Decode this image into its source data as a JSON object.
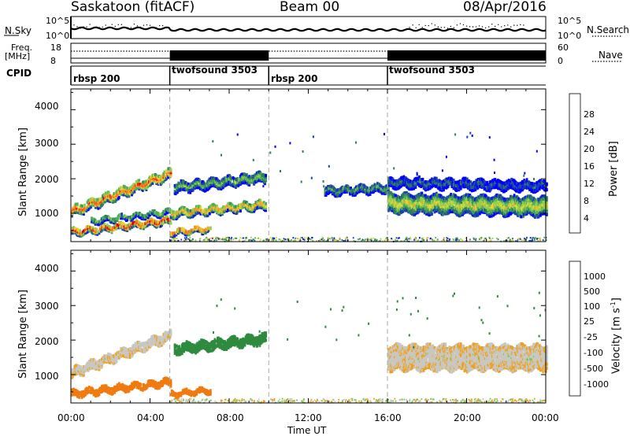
{
  "header": {
    "station": "Saskatoon (fitACF)",
    "beam": "Beam 00",
    "date": "08/Apr/2016"
  },
  "summary": {
    "nsky_label": "N.Sky",
    "nsky_ticks": [
      "10^5",
      "10^0"
    ],
    "nsearch_label": "N.Search",
    "freq_label_1": "Freq.",
    "freq_label_2": "[MHz]",
    "freq_ticks": [
      "18",
      "8"
    ],
    "nave_ticks": [
      "60",
      "0"
    ],
    "nave_label": "Nave",
    "cpid_label": "CPID",
    "cpid_segments": [
      {
        "name": "rbsp 200",
        "start_h": 0,
        "end_h": 5
      },
      {
        "name": "twofsound 3503",
        "start_h": 5,
        "end_h": 10
      },
      {
        "name": "rbsp 200",
        "start_h": 10,
        "end_h": 16
      },
      {
        "name": "twofsound 3503",
        "start_h": 16,
        "end_h": 24
      }
    ]
  },
  "chart_data": [
    {
      "type": "heatmap",
      "title": "Power",
      "ylabel": "Slant Range [km]",
      "ylim": [
        180,
        4600
      ],
      "yticks": [
        "4000",
        "3000",
        "2000",
        "1000"
      ],
      "xlim_hours": [
        0,
        24
      ],
      "colorbar_label": "Power [dB]",
      "colorbar_ticks": [
        "28",
        "24",
        "20",
        "16",
        "12",
        "8",
        "4"
      ],
      "colorbar_colors": [
        "#0000ff",
        "#1a3fb0",
        "#2f7d60",
        "#4fae5a",
        "#8fd04e",
        "#e0d63a",
        "#f2a62a",
        "#f47a20",
        "#f04818",
        "#e00000"
      ],
      "scatter_bands": [
        {
          "start_h": 0.0,
          "end_h": 5.0,
          "range_start_km": 1050,
          "range_end_km": 2150,
          "width_km": 260,
          "peak_power_db": 26
        },
        {
          "start_h": 0.0,
          "end_h": 5.0,
          "range_start_km": 460,
          "range_end_km": 800,
          "width_km": 180,
          "peak_power_db": 28
        },
        {
          "start_h": 1.0,
          "end_h": 5.0,
          "range_start_km": 780,
          "range_end_km": 1050,
          "width_km": 140,
          "peak_power_db": 14
        },
        {
          "start_h": 5.0,
          "end_h": 9.8,
          "range_start_km": 1000,
          "range_end_km": 1250,
          "width_km": 220,
          "peak_power_db": 22
        },
        {
          "start_h": 5.0,
          "end_h": 7.0,
          "range_start_km": 450,
          "range_end_km": 560,
          "width_km": 140,
          "peak_power_db": 26
        },
        {
          "start_h": 5.2,
          "end_h": 9.8,
          "range_start_km": 1750,
          "range_end_km": 2050,
          "width_km": 260,
          "peak_power_db": 14
        },
        {
          "start_h": 12.8,
          "end_h": 16.0,
          "range_start_km": 1650,
          "range_end_km": 1750,
          "width_km": 230,
          "peak_power_db": 12
        },
        {
          "start_h": 16.0,
          "end_h": 24.0,
          "range_start_km": 1300,
          "range_end_km": 1200,
          "width_km": 520,
          "peak_power_db": 18
        },
        {
          "start_h": 16.0,
          "end_h": 24.0,
          "range_start_km": 1900,
          "range_end_km": 1800,
          "width_km": 260,
          "peak_power_db": 8
        }
      ]
    },
    {
      "type": "heatmap",
      "title": "Velocity",
      "ylabel": "Slant Range [km]",
      "ylim": [
        180,
        4600
      ],
      "yticks": [
        "4000",
        "3000",
        "2000",
        "1000"
      ],
      "xlabel": "Time UT",
      "xticks": [
        "00:00",
        "04:00",
        "08:00",
        "12:00",
        "16:00",
        "20:00",
        "00:00"
      ],
      "xlim_hours": [
        0,
        24
      ],
      "colorbar_label": "Velocity [m s",
      "colorbar_unit_exp": "-1",
      "colorbar_label_close": "]",
      "colorbar_ticks": [
        "1000",
        "500",
        "100",
        "25",
        "-25",
        "-100",
        "-500",
        "-1000"
      ],
      "colorbar_colors": [
        "#1020c0",
        "#1a6a9a",
        "#2e8a3e",
        "#78c850",
        "#c8c8c0",
        "#f0a020",
        "#f07a10",
        "#e84818",
        "#e01010"
      ],
      "scatter_bands": [
        {
          "start_h": 0.0,
          "end_h": 5.0,
          "range_start_km": 1050,
          "range_end_km": 2150,
          "width_km": 260,
          "velocity": 0
        },
        {
          "start_h": 0.0,
          "end_h": 5.0,
          "range_start_km": 460,
          "range_end_km": 800,
          "width_km": 180,
          "velocity": -150
        },
        {
          "start_h": 5.0,
          "end_h": 7.0,
          "range_start_km": 450,
          "range_end_km": 560,
          "width_km": 140,
          "velocity": -200
        },
        {
          "start_h": 5.2,
          "end_h": 9.8,
          "range_start_km": 1750,
          "range_end_km": 2050,
          "width_km": 260,
          "velocity": 300
        },
        {
          "start_h": 16.0,
          "end_h": 24.0,
          "range_start_km": 1500,
          "range_end_km": 1500,
          "width_km": 700,
          "velocity": 0
        }
      ]
    }
  ]
}
